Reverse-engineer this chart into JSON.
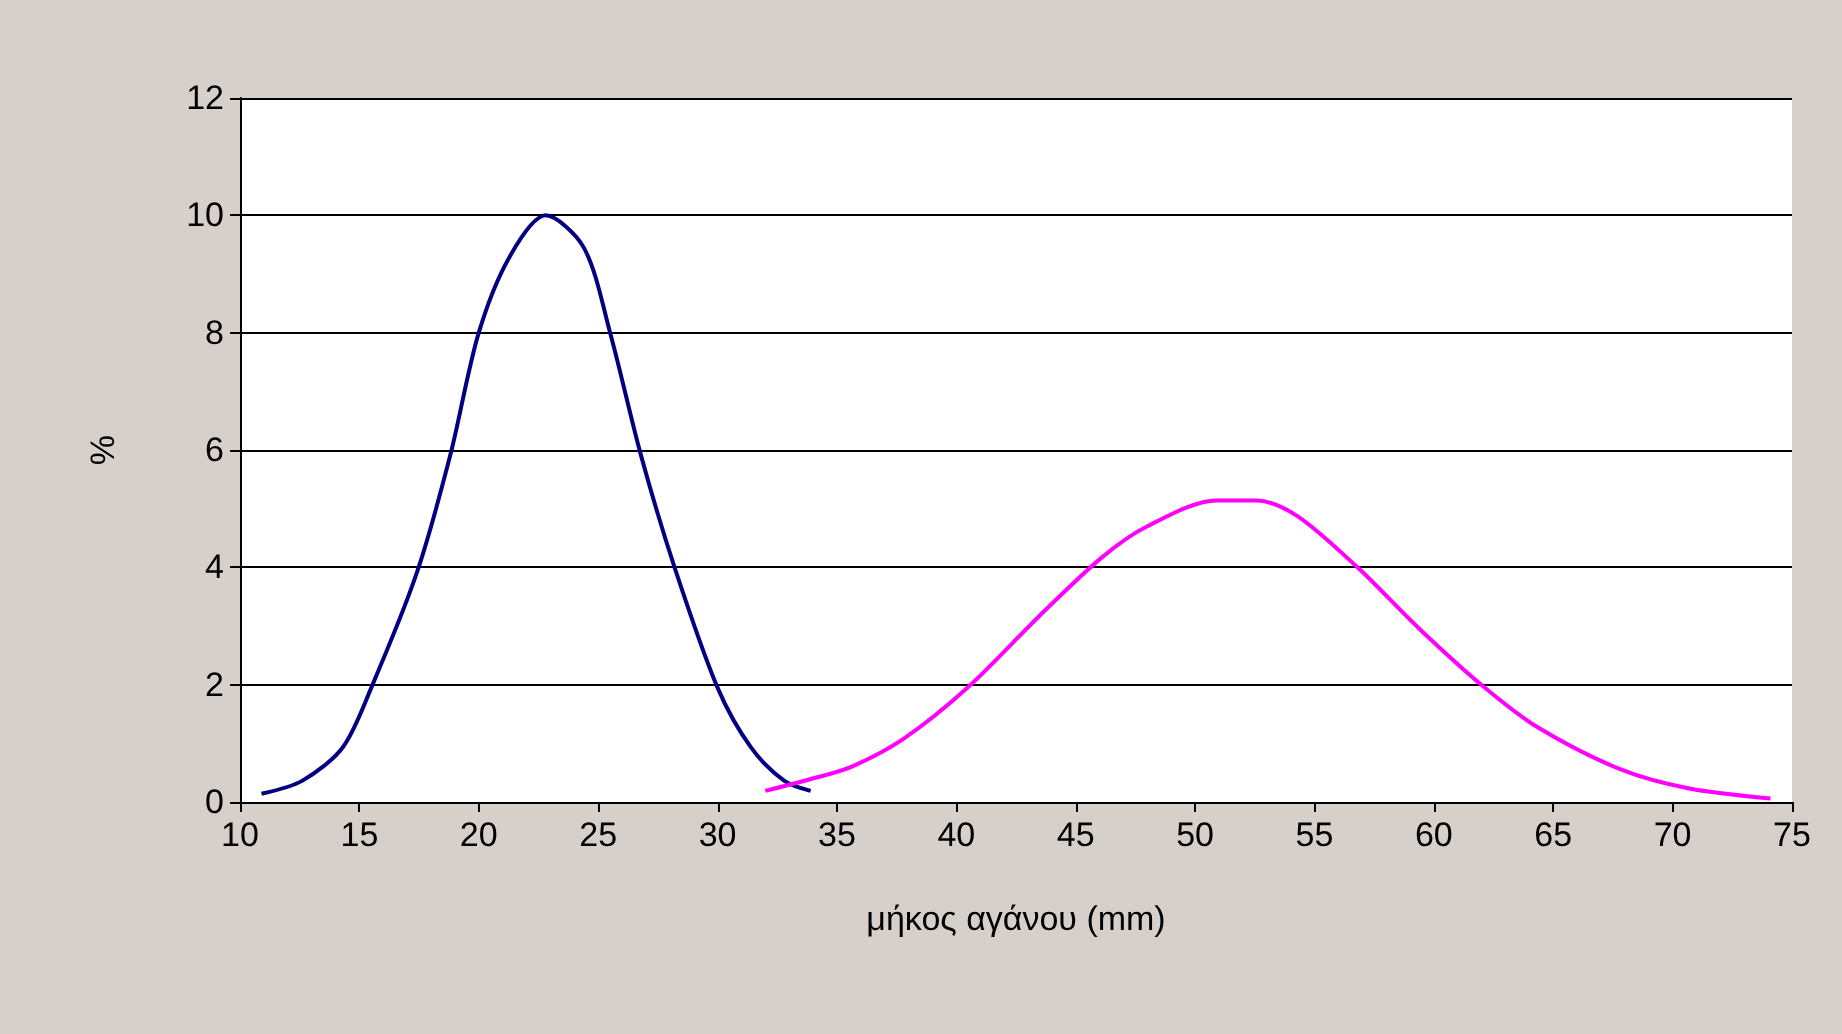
{
  "chart_data": {
    "type": "line",
    "xlabel": "μήκος αγάνου (mm)",
    "ylabel": "%",
    "xlim": [
      10,
      75
    ],
    "xticks": [
      10,
      15,
      20,
      25,
      30,
      35,
      40,
      45,
      50,
      55,
      60,
      65,
      70,
      75
    ],
    "ylim": [
      0,
      12
    ],
    "yticks": [
      0,
      2,
      4,
      6,
      8,
      10,
      12
    ],
    "grid": "y",
    "marker": "none",
    "line_style": "solid",
    "series": [
      {
        "color": "#000080",
        "x": [
          10.9,
          12.6,
          14.3,
          15.5,
          17.4,
          18.8,
          20.0,
          21.3,
          22.8,
          24.4,
          25.5,
          26.8,
          28.2,
          30.0,
          31.4,
          32.8,
          33.9
        ],
        "values": [
          0.14,
          0.36,
          0.93,
          1.95,
          3.9,
          5.9,
          8.0,
          9.3,
          10.0,
          9.45,
          8.0,
          5.9,
          4.0,
          1.95,
          0.93,
          0.36,
          0.19
        ]
      },
      {
        "color": "#ff00ff",
        "x": [
          32.0,
          33.8,
          35.6,
          37.8,
          40.5,
          43.5,
          46.1,
          48.0,
          50.9,
          52.6,
          54.3,
          56.8,
          59.4,
          62.1,
          64.4,
          67.8,
          70.7,
          74.1
        ],
        "values": [
          0.19,
          0.38,
          0.6,
          1.08,
          1.96,
          3.18,
          4.17,
          4.7,
          5.14,
          5.14,
          4.87,
          4.0,
          2.95,
          1.96,
          1.26,
          0.56,
          0.23,
          0.06
        ]
      }
    ]
  }
}
